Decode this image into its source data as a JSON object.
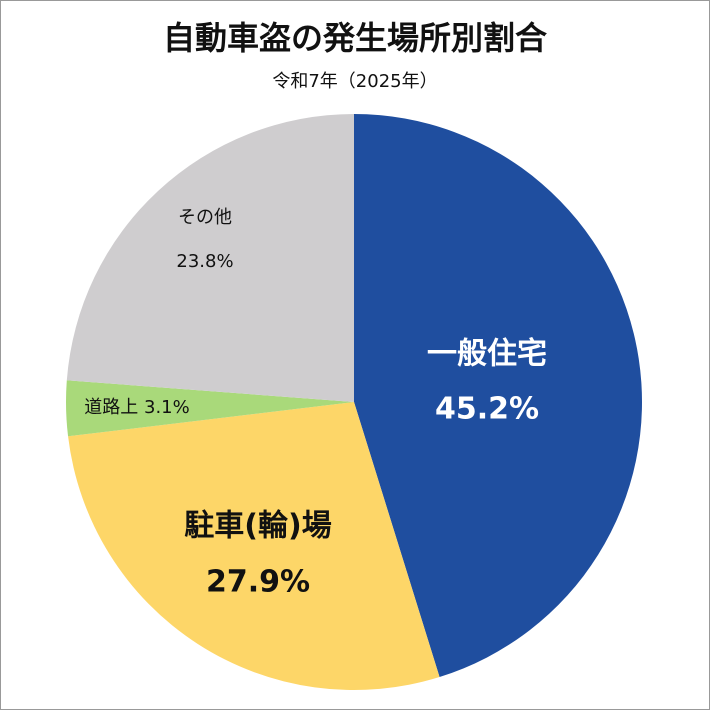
{
  "chart_data": {
    "type": "pie",
    "title": "自動車盗の発生場所別割合",
    "subtitle": "令和7年（2025年）",
    "categories": [
      "一般住宅",
      "駐車(輪)場",
      "道路上",
      "その他"
    ],
    "values": [
      45.2,
      27.9,
      3.1,
      23.8
    ],
    "value_labels": [
      "45.2%",
      "27.9%",
      "3.1%",
      "23.8%"
    ],
    "colors": [
      "#1f4e9f",
      "#fdd668",
      "#a9d97a",
      "#cfcdcf"
    ]
  }
}
